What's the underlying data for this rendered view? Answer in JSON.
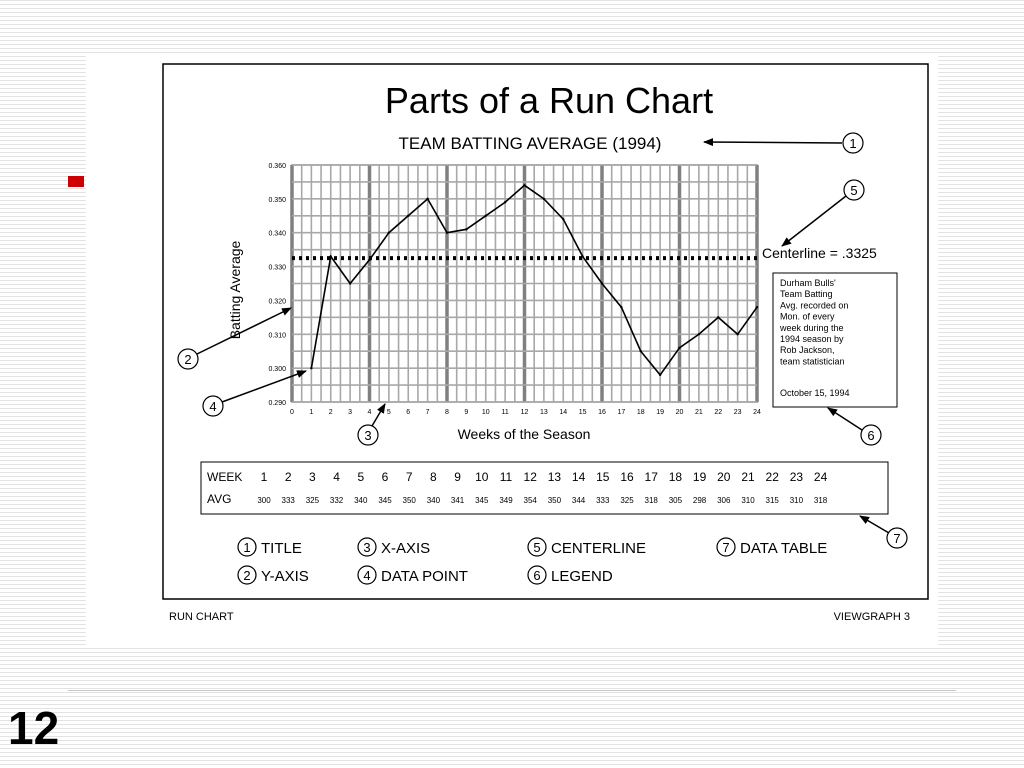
{
  "slide": {
    "number": "12",
    "colors": {
      "bullet": "#cc0000",
      "background_stripes": "#e2e2e2"
    }
  },
  "viewgraph": {
    "footer_left": "RUN CHART",
    "footer_right": "VIEWGRAPH 3"
  },
  "chart_data": {
    "type": "line",
    "title": "Parts of a Run Chart",
    "subtitle": "TEAM BATTING AVERAGE (1994)",
    "xlabel": "Weeks of the Season",
    "ylabel": "Batting Average",
    "x": [
      1,
      2,
      3,
      4,
      5,
      6,
      7,
      8,
      9,
      10,
      11,
      12,
      13,
      14,
      15,
      16,
      17,
      18,
      19,
      20,
      21,
      22,
      23,
      24
    ],
    "series": [
      {
        "values": [
          0.3,
          0.333,
          0.325,
          0.332,
          0.34,
          0.345,
          0.35,
          0.34,
          0.341,
          0.345,
          0.349,
          0.354,
          0.35,
          0.344,
          0.333,
          0.325,
          0.318,
          0.305,
          0.298,
          0.306,
          0.31,
          0.315,
          0.31,
          0.318
        ]
      }
    ],
    "xlim": [
      0,
      24
    ],
    "ylim": [
      0.29,
      0.36
    ],
    "x_ticks": [
      "0",
      "1",
      "2",
      "3",
      "4",
      "5",
      "6",
      "7",
      "8",
      "9",
      "10",
      "11",
      "12",
      "13",
      "14",
      "15",
      "16",
      "17",
      "18",
      "19",
      "20",
      "21",
      "22",
      "23",
      "24"
    ],
    "y_ticks": [
      "0.290",
      "0.300",
      "0.310",
      "0.320",
      "0.330",
      "0.340",
      "0.350",
      "0.360"
    ],
    "grid": true,
    "centerline": {
      "value": 0.3325,
      "label": "Centerline = .3325",
      "style": "dotted"
    },
    "legend_box": {
      "lines": [
        "Durham Bulls'",
        "Team Batting",
        "Avg. recorded on",
        "Mon. of every",
        "week during the",
        "1994 season by",
        "Rob Jackson,",
        "team statistician"
      ],
      "date": "October 15, 1994"
    },
    "data_table": {
      "week_header": "WEEK",
      "avg_header": "AVG",
      "weeks": [
        "1",
        "2",
        "3",
        "4",
        "5",
        "6",
        "7",
        "8",
        "9",
        "10",
        "11",
        "12",
        "13",
        "14",
        "15",
        "16",
        "17",
        "18",
        "19",
        "20",
        "21",
        "22",
        "23",
        "24"
      ],
      "avgs": [
        "300",
        "333",
        "325",
        "332",
        "340",
        "345",
        "350",
        "340",
        "341",
        "345",
        "349",
        "354",
        "350",
        "344",
        "333",
        "325",
        "318",
        "305",
        "298",
        "306",
        "310",
        "315",
        "310",
        "318"
      ]
    },
    "callouts": [
      "1",
      "2",
      "3",
      "4",
      "5",
      "6",
      "7"
    ],
    "key": [
      {
        "num": "1",
        "label": "TITLE"
      },
      {
        "num": "2",
        "label": "Y-AXIS"
      },
      {
        "num": "3",
        "label": "X-AXIS"
      },
      {
        "num": "4",
        "label": "DATA POINT"
      },
      {
        "num": "5",
        "label": "CENTERLINE"
      },
      {
        "num": "6",
        "label": "LEGEND"
      },
      {
        "num": "7",
        "label": "DATA TABLE"
      }
    ]
  }
}
